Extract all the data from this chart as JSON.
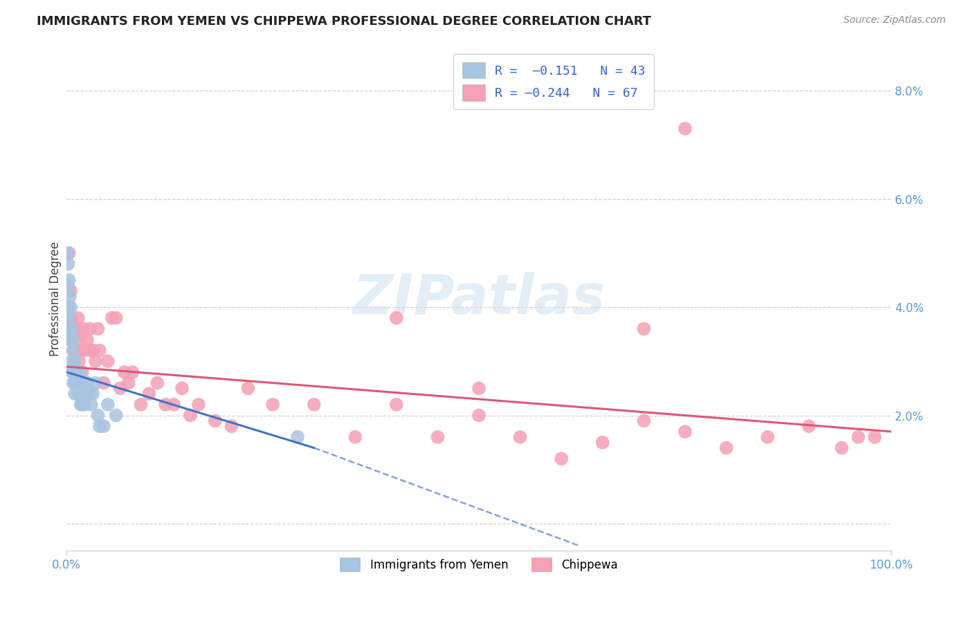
{
  "title": "IMMIGRANTS FROM YEMEN VS CHIPPEWA PROFESSIONAL DEGREE CORRELATION CHART",
  "source": "Source: ZipAtlas.com",
  "ylabel": "Professional Degree",
  "yticks": [
    0.0,
    0.02,
    0.04,
    0.06,
    0.08
  ],
  "ytick_labels": [
    "",
    "2.0%",
    "4.0%",
    "6.0%",
    "8.0%"
  ],
  "xlim": [
    0.0,
    1.0
  ],
  "ylim": [
    -0.005,
    0.088
  ],
  "series1_color": "#a8c4e0",
  "series2_color": "#f4a0b5",
  "line1_color": "#4472c4",
  "line2_color": "#e05575",
  "line1_solid_end": 0.3,
  "line1_dash_end": 0.62,
  "background_color": "#ffffff",
  "blue_x": [
    0.001,
    0.001,
    0.002,
    0.002,
    0.003,
    0.003,
    0.004,
    0.004,
    0.005,
    0.005,
    0.006,
    0.006,
    0.007,
    0.007,
    0.008,
    0.008,
    0.009,
    0.01,
    0.01,
    0.011,
    0.012,
    0.013,
    0.014,
    0.015,
    0.016,
    0.017,
    0.018,
    0.019,
    0.02,
    0.021,
    0.022,
    0.024,
    0.025,
    0.027,
    0.03,
    0.032,
    0.035,
    0.038,
    0.04,
    0.045,
    0.05,
    0.06,
    0.28
  ],
  "blue_y": [
    0.05,
    0.044,
    0.048,
    0.04,
    0.045,
    0.038,
    0.042,
    0.036,
    0.04,
    0.034,
    0.036,
    0.03,
    0.034,
    0.028,
    0.032,
    0.026,
    0.028,
    0.03,
    0.024,
    0.026,
    0.028,
    0.026,
    0.024,
    0.026,
    0.028,
    0.022,
    0.024,
    0.022,
    0.024,
    0.026,
    0.022,
    0.024,
    0.026,
    0.024,
    0.022,
    0.024,
    0.026,
    0.02,
    0.018,
    0.018,
    0.022,
    0.02,
    0.016
  ],
  "pink_x": [
    0.002,
    0.003,
    0.004,
    0.005,
    0.006,
    0.007,
    0.008,
    0.009,
    0.01,
    0.011,
    0.012,
    0.013,
    0.014,
    0.015,
    0.016,
    0.017,
    0.018,
    0.019,
    0.02,
    0.022,
    0.025,
    0.028,
    0.03,
    0.032,
    0.035,
    0.038,
    0.04,
    0.045,
    0.05,
    0.055,
    0.06,
    0.065,
    0.07,
    0.075,
    0.08,
    0.09,
    0.1,
    0.11,
    0.12,
    0.13,
    0.14,
    0.15,
    0.16,
    0.18,
    0.2,
    0.22,
    0.25,
    0.3,
    0.35,
    0.4,
    0.45,
    0.5,
    0.55,
    0.6,
    0.65,
    0.7,
    0.75,
    0.8,
    0.85,
    0.9,
    0.94,
    0.96,
    0.98,
    0.4,
    0.5,
    0.75,
    0.7
  ],
  "pink_y": [
    0.036,
    0.05,
    0.034,
    0.043,
    0.038,
    0.028,
    0.032,
    0.032,
    0.03,
    0.036,
    0.032,
    0.034,
    0.038,
    0.03,
    0.026,
    0.032,
    0.035,
    0.028,
    0.036,
    0.032,
    0.034,
    0.036,
    0.032,
    0.032,
    0.03,
    0.036,
    0.032,
    0.026,
    0.03,
    0.038,
    0.038,
    0.025,
    0.028,
    0.026,
    0.028,
    0.022,
    0.024,
    0.026,
    0.022,
    0.022,
    0.025,
    0.02,
    0.022,
    0.019,
    0.018,
    0.025,
    0.022,
    0.022,
    0.016,
    0.022,
    0.016,
    0.02,
    0.016,
    0.012,
    0.015,
    0.019,
    0.017,
    0.014,
    0.016,
    0.018,
    0.014,
    0.016,
    0.016,
    0.038,
    0.025,
    0.073,
    0.036
  ],
  "line1_x0": 0.0,
  "line1_y0": 0.028,
  "line1_x1": 0.3,
  "line1_y1": 0.014,
  "line1_dash_x1": 0.62,
  "line1_dash_y1": -0.004,
  "line2_x0": 0.0,
  "line2_y0": 0.029,
  "line2_x1": 1.0,
  "line2_y1": 0.017
}
